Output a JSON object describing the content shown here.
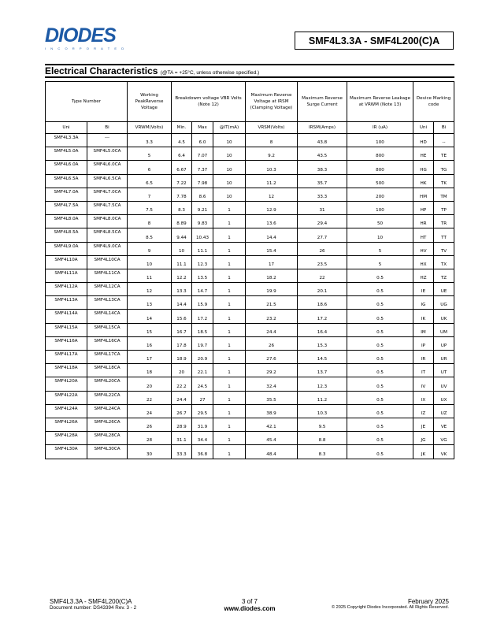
{
  "header": {
    "logo_text": "DIODES",
    "logo_sub": "INCORPORATED",
    "part_range": "SMF4L3.3A - SMF4L200(C)A"
  },
  "section": {
    "title": "Electrical Characteristics",
    "condition": "(@TA = +25°C, unless otherwise specified.)"
  },
  "table": {
    "headers": {
      "type_number": "Type Number",
      "working": "Working PeakReverse Voltage",
      "breakdown": "Breakdowm voltage VBR Volts (Note 12)",
      "clamping": "Maximum Reverse Voltage at IRSM (Clamping Voltage)",
      "surge": "Maximum Reverse Surge Current",
      "leakage": "Maximum Reverse Leakage at VRWM (Note 13)",
      "marking": "Device Marking code"
    },
    "subheaders": [
      "Uni",
      "Bi",
      "VRWM(Volts)",
      "Min.",
      "Max",
      "@IT(mA)",
      "VRSM(Volts)",
      "IRSM(Amps)",
      "IR (uA)",
      "Uni",
      "Bi"
    ],
    "rows": [
      [
        "SMF4L3.3A",
        "---",
        "3.3",
        "4.5",
        "6.0",
        "10",
        "8",
        "43.8",
        "100",
        "HD",
        "--"
      ],
      [
        "SMF4L5.0A",
        "SMF4L5.0CA",
        "5",
        "6.4",
        "7.07",
        "10",
        "9.2",
        "43.5",
        "800",
        "HE",
        "TE"
      ],
      [
        "SMF4L6.0A",
        "SMF4L6.0CA",
        "6",
        "6.67",
        "7.37",
        "10",
        "10.3",
        "38.3",
        "800",
        "HG",
        "TG"
      ],
      [
        "SMF4L6.5A",
        "SMF4L6.5CA",
        "6.5",
        "7.22",
        "7.98",
        "10",
        "11.2",
        "35.7",
        "500",
        "HK",
        "TK"
      ],
      [
        "SMF4L7.0A",
        "SMF4L7.0CA",
        "7",
        "7.78",
        "8.6",
        "10",
        "12",
        "33.3",
        "200",
        "HM",
        "TM"
      ],
      [
        "SMF4L7.5A",
        "SMF4L7.5CA",
        "7.5",
        "8.3",
        "9.21",
        "1",
        "12.9",
        "31",
        "100",
        "HP",
        "TP"
      ],
      [
        "SMF4L8.0A",
        "SMF4L8.0CA",
        "8",
        "8.89",
        "9.83",
        "1",
        "13.6",
        "29.4",
        "50",
        "HR",
        "TR"
      ],
      [
        "SMF4L8.5A",
        "SMF4L8.5CA",
        "8.5",
        "9.44",
        "10.43",
        "1",
        "14.4",
        "27.7",
        "10",
        "HT",
        "TT"
      ],
      [
        "SMF4L9.0A",
        "SMF4L9.0CA",
        "9",
        "10",
        "11.1",
        "1",
        "15.4",
        "26",
        "5",
        "HV",
        "TV"
      ],
      [
        "SMF4L10A",
        "SMF4L10CA",
        "10",
        "11.1",
        "12.3",
        "1",
        "17",
        "23.5",
        "5",
        "HX",
        "TX"
      ],
      [
        "SMF4L11A",
        "SMF4L11CA",
        "11",
        "12.2",
        "13.5",
        "1",
        "18.2",
        "22",
        "0.5",
        "HZ",
        "TZ"
      ],
      [
        "SMF4L12A",
        "SMF4L12CA",
        "12",
        "13.3",
        "14.7",
        "1",
        "19.9",
        "20.1",
        "0.5",
        "IE",
        "UE"
      ],
      [
        "SMF4L13A",
        "SMF4L13CA",
        "13",
        "14.4",
        "15.9",
        "1",
        "21.5",
        "18.6",
        "0.5",
        "IG",
        "UG"
      ],
      [
        "SMF4L14A",
        "SMF4L14CA",
        "14",
        "15.6",
        "17.2",
        "1",
        "23.2",
        "17.2",
        "0.5",
        "IK",
        "UK"
      ],
      [
        "SMF4L15A",
        "SMF4L15CA",
        "15",
        "16.7",
        "18.5",
        "1",
        "24.4",
        "16.4",
        "0.5",
        "IM",
        "UM"
      ],
      [
        "SMF4L16A",
        "SMF4L16CA",
        "16",
        "17.8",
        "19.7",
        "1",
        "26",
        "15.3",
        "0.5",
        "IP",
        "UP"
      ],
      [
        "SMF4L17A",
        "SMF4L17CA",
        "17",
        "18.9",
        "20.9",
        "1",
        "27.6",
        "14.5",
        "0.5",
        "IR",
        "UR"
      ],
      [
        "SMF4L18A",
        "SMF4L18CA",
        "18",
        "20",
        "22.1",
        "1",
        "29.2",
        "13.7",
        "0.5",
        "IT",
        "UT"
      ],
      [
        "SMF4L20A",
        "SMF4L20CA",
        "20",
        "22.2",
        "24.5",
        "1",
        "32.4",
        "12.3",
        "0.5",
        "IV",
        "UV"
      ],
      [
        "SMF4L22A",
        "SMF4L22CA",
        "22",
        "24.4",
        "27",
        "1",
        "35.5",
        "11.2",
        "0.5",
        "IX",
        "UX"
      ],
      [
        "SMF4L24A",
        "SMF4L24CA",
        "24",
        "26.7",
        "29.5",
        "1",
        "38.9",
        "10.3",
        "0.5",
        "IZ",
        "UZ"
      ],
      [
        "SMF4L26A",
        "SMF4L26CA",
        "26",
        "28.9",
        "31.9",
        "1",
        "42.1",
        "9.5",
        "0.5",
        "JE",
        "VE"
      ],
      [
        "SMF4L28A",
        "SMF4L28CA",
        "28",
        "31.1",
        "34.4",
        "1",
        "45.4",
        "8.8",
        "0.5",
        "JG",
        "VG"
      ],
      [
        "SMF4L30A",
        "SMF4L30CA",
        "30",
        "33.3",
        "36.8",
        "1",
        "48.4",
        "8.3",
        "0.5",
        "JK",
        "VK"
      ]
    ]
  },
  "footer": {
    "part_range": "SMF4L3.3A - SMF4L200(C)A",
    "doc_number": "Document number: DS43394 Rev. 3 - 2",
    "page": "3 of 7",
    "website": "www.diodes.com",
    "date": "February 2025",
    "copyright": "© 2025 Copyright Diodes Incorporated. All Rights Reserved."
  }
}
